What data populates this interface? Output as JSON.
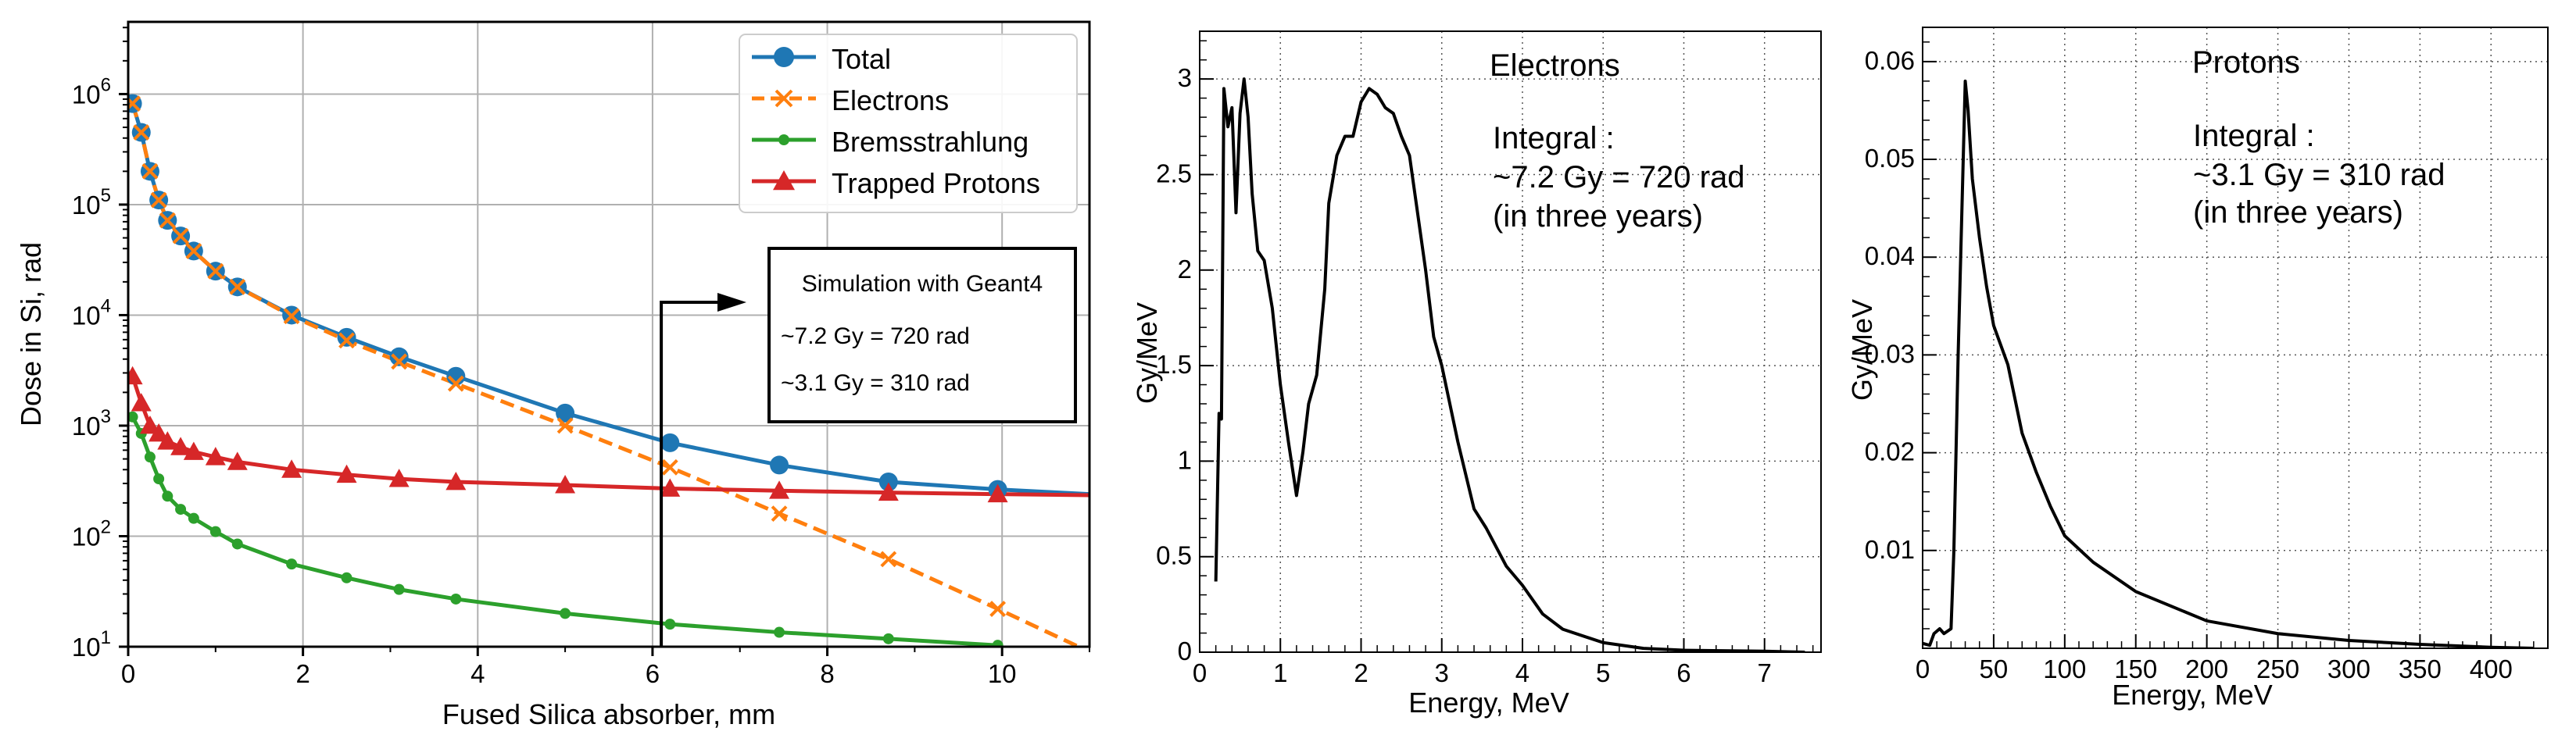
{
  "chart_data": [
    {
      "type": "line",
      "xlabel": "Fused Silica absorber, mm",
      "ylabel": "Dose in Si, rad",
      "xlim": [
        0,
        11
      ],
      "ylim": [
        10,
        4500000
      ],
      "yscale": "log",
      "grid": true,
      "legend_position": "top-right",
      "x_ticks": [
        "0",
        "2",
        "4",
        "6",
        "8",
        "10"
      ],
      "y_ticks": [
        {
          "base": "10",
          "exp": "1"
        },
        {
          "base": "10",
          "exp": "2"
        },
        {
          "base": "10",
          "exp": "3"
        },
        {
          "base": "10",
          "exp": "4"
        },
        {
          "base": "10",
          "exp": "5"
        },
        {
          "base": "10",
          "exp": "6"
        }
      ],
      "series": [
        {
          "name": "Total",
          "color": "#1f77b4",
          "marker": "circle",
          "line": "solid",
          "x": [
            0.05,
            0.15,
            0.25,
            0.35,
            0.45,
            0.6,
            0.75,
            1.0,
            1.25,
            1.87,
            2.5,
            3.1,
            3.75,
            5.0,
            6.2,
            7.45,
            8.7,
            9.95,
            11
          ],
          "y": [
            820000,
            450000,
            200000,
            110000,
            72000,
            52000,
            38000,
            25000,
            18000,
            10000,
            6300,
            4200,
            2800,
            1300,
            700,
            440,
            310,
            265,
            240
          ]
        },
        {
          "name": "Electrons",
          "color": "#ff7f0e",
          "marker": "x",
          "line": "dashed",
          "x": [
            0.05,
            0.15,
            0.25,
            0.35,
            0.45,
            0.6,
            0.75,
            1.0,
            1.25,
            1.87,
            2.5,
            3.1,
            3.75,
            5.0,
            6.2,
            7.45,
            8.7,
            9.95,
            11
          ],
          "y": [
            820000,
            450000,
            200000,
            110000,
            72000,
            52000,
            38000,
            25000,
            18000,
            9800,
            5900,
            3800,
            2400,
            1000,
            420,
            160,
            62,
            22,
            9
          ]
        },
        {
          "name": "Bremsstrahlung",
          "color": "#2ca02c",
          "marker": "dot",
          "line": "solid",
          "x": [
            0.05,
            0.15,
            0.25,
            0.35,
            0.45,
            0.6,
            0.75,
            1.0,
            1.25,
            1.87,
            2.5,
            3.1,
            3.75,
            5.0,
            6.2,
            7.45,
            8.7,
            9.95
          ],
          "y": [
            1200,
            850,
            520,
            330,
            230,
            175,
            145,
            110,
            85,
            56,
            42,
            33,
            27,
            20,
            16,
            13.5,
            11.8,
            10.3
          ]
        },
        {
          "name": "Trapped Protons",
          "color": "#d62728",
          "marker": "triangle",
          "line": "solid",
          "x": [
            0.05,
            0.15,
            0.25,
            0.35,
            0.45,
            0.6,
            0.75,
            1.0,
            1.25,
            1.87,
            2.5,
            3.1,
            3.75,
            5.0,
            6.2,
            7.45,
            8.7,
            9.95,
            11
          ],
          "y": [
            2800,
            1600,
            1000,
            850,
            720,
            640,
            580,
            520,
            470,
            400,
            360,
            330,
            310,
            290,
            270,
            258,
            248,
            240,
            235
          ]
        }
      ],
      "annotation": {
        "lines": [
          "Simulation with Geant4",
          "~7.2 Gy = 720 rad",
          "~3.1 Gy = 310 rad"
        ],
        "arrow_x": 6.1
      }
    },
    {
      "type": "line",
      "xlabel": "Energy, MeV",
      "ylabel": "Gy/MeV",
      "xlim": [
        0,
        7.7
      ],
      "ylim": [
        0,
        3.25
      ],
      "grid": true,
      "grid_style": "dotted",
      "x_ticks": [
        "0",
        "1",
        "2",
        "3",
        "4",
        "5",
        "6",
        "7"
      ],
      "y_ticks": [
        "0",
        "0.5",
        "1",
        "1.5",
        "2",
        "2.5",
        "3"
      ],
      "annotation": [
        "Electrons",
        "Integral :",
        "~7.2 Gy = 720 rad",
        "(in three years)"
      ],
      "series": [
        {
          "color": "#000000",
          "x": [
            0.2,
            0.24,
            0.27,
            0.3,
            0.35,
            0.4,
            0.45,
            0.5,
            0.55,
            0.6,
            0.65,
            0.72,
            0.8,
            0.9,
            1.0,
            1.1,
            1.2,
            1.28,
            1.35,
            1.45,
            1.55,
            1.6,
            1.7,
            1.8,
            1.9,
            2.0,
            2.1,
            2.2,
            2.3,
            2.4,
            2.5,
            2.6,
            2.7,
            2.8,
            2.9,
            3.0,
            3.2,
            3.4,
            3.55,
            3.8,
            4.0,
            4.25,
            4.5,
            5.0,
            5.5,
            6.0,
            7.0,
            7.5
          ],
          "y": [
            0.37,
            1.25,
            1.22,
            2.95,
            2.75,
            2.85,
            2.3,
            2.82,
            3.0,
            2.8,
            2.4,
            2.1,
            2.05,
            1.8,
            1.4,
            1.1,
            0.82,
            1.05,
            1.3,
            1.45,
            1.9,
            2.35,
            2.6,
            2.7,
            2.7,
            2.88,
            2.95,
            2.92,
            2.85,
            2.82,
            2.7,
            2.6,
            2.3,
            2.0,
            1.65,
            1.5,
            1.1,
            0.75,
            0.65,
            0.45,
            0.35,
            0.2,
            0.12,
            0.05,
            0.02,
            0.01,
            0.005,
            0.0
          ]
        }
      ]
    },
    {
      "type": "line",
      "xlabel": "Energy, MeV",
      "ylabel": "Gy/MeV",
      "xlim": [
        0,
        440
      ],
      "ylim": [
        0,
        0.0635
      ],
      "grid": true,
      "grid_style": "dotted",
      "x_ticks": [
        "0",
        "50",
        "100",
        "150",
        "200",
        "250",
        "300",
        "350",
        "400"
      ],
      "y_ticks": [
        "0.01",
        "0.02",
        "0.03",
        "0.04",
        "0.05",
        "0.06"
      ],
      "annotation": [
        "Protons",
        "Integral :",
        "~3.1 Gy = 310 rad",
        "(in three years)"
      ],
      "series": [
        {
          "color": "#000000",
          "x": [
            0,
            5,
            8,
            12,
            15,
            20,
            22,
            25,
            30,
            32,
            35,
            40,
            45,
            50,
            60,
            70,
            80,
            90,
            100,
            120,
            150,
            200,
            250,
            300,
            350,
            400,
            430
          ],
          "y": [
            0.0005,
            0.0003,
            0.0015,
            0.002,
            0.0015,
            0.002,
            0.01,
            0.03,
            0.058,
            0.055,
            0.048,
            0.042,
            0.037,
            0.033,
            0.029,
            0.022,
            0.018,
            0.0145,
            0.0115,
            0.0088,
            0.0058,
            0.0028,
            0.0015,
            0.0008,
            0.0004,
            0.0001,
            0.0
          ]
        }
      ]
    }
  ]
}
